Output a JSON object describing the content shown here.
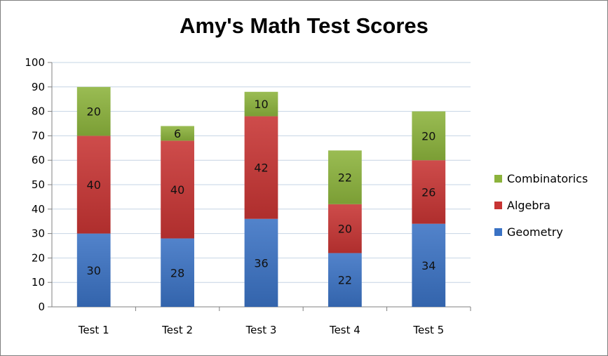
{
  "chart_data": {
    "type": "bar",
    "stacked": true,
    "title": "Amy's Math Test Scores",
    "categories": [
      "Test 1",
      "Test 2",
      "Test 3",
      "Test 4",
      "Test 5"
    ],
    "series": [
      {
        "name": "Geometry",
        "values": [
          30,
          28,
          36,
          22,
          34
        ],
        "color": "#3a72c4"
      },
      {
        "name": "Algebra",
        "values": [
          40,
          40,
          42,
          20,
          26
        ],
        "color": "#c73433"
      },
      {
        "name": "Combinatorics",
        "values": [
          20,
          6,
          10,
          22,
          20
        ],
        "color": "#8cb33c"
      }
    ],
    "ylim": [
      0,
      100
    ],
    "yticks": [
      "0",
      "10",
      "20",
      "30",
      "40",
      "50",
      "60",
      "70",
      "80",
      "90",
      "100"
    ],
    "grid": true,
    "legend_position": "right"
  }
}
